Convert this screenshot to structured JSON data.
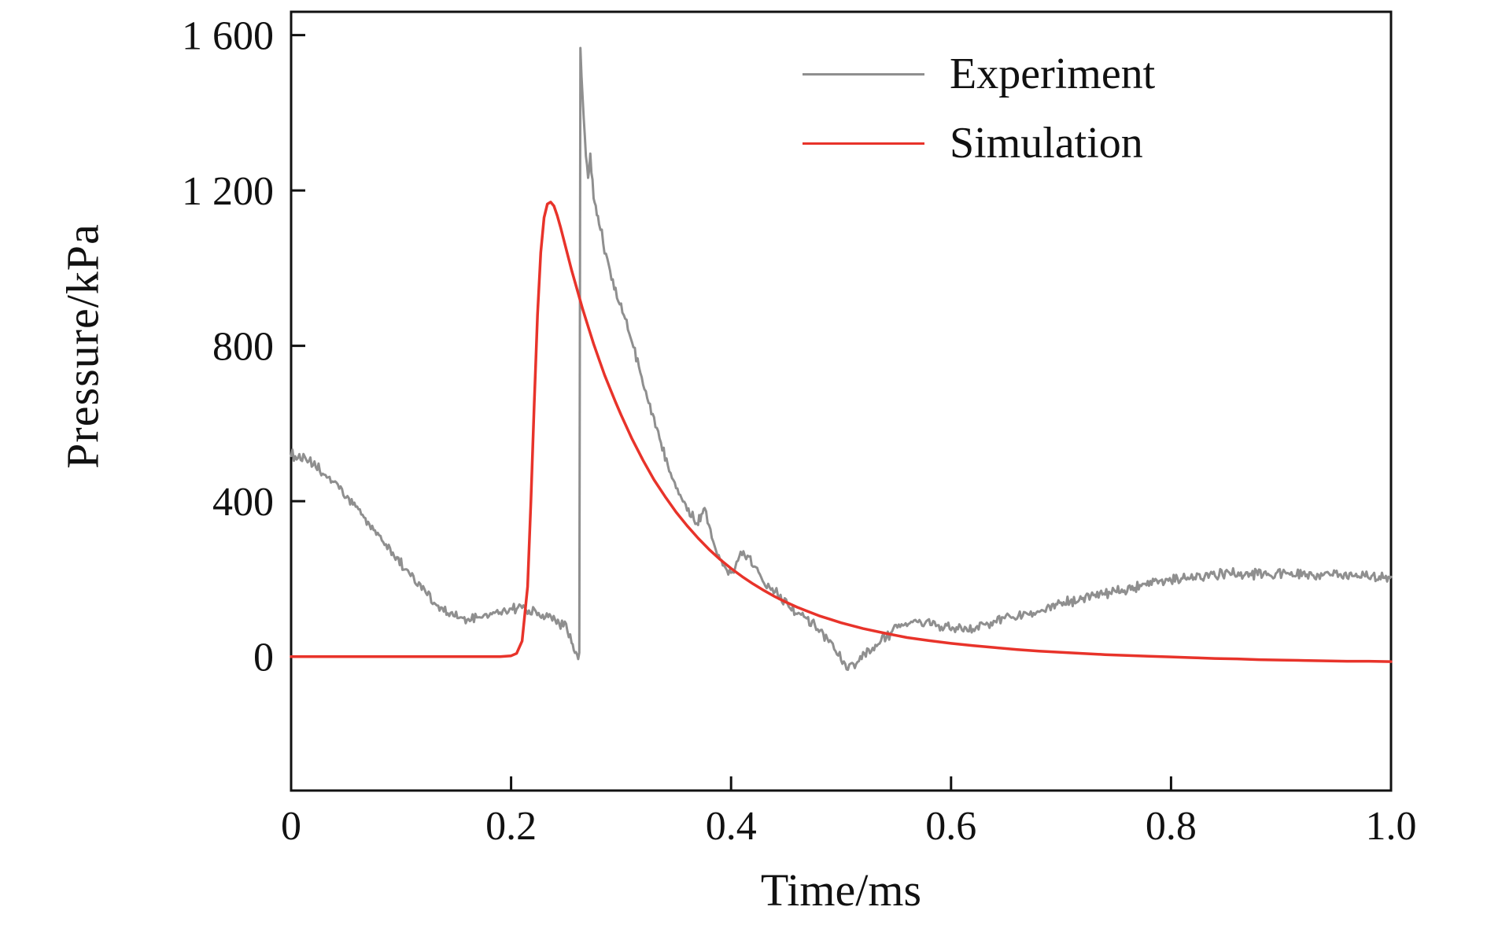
{
  "chart_data": {
    "type": "line",
    "title": "",
    "xlabel": "Time/ms",
    "ylabel": "Pressure/kPa",
    "xlim": [
      0,
      1.0
    ],
    "ylim": [
      -345,
      1660
    ],
    "x_ticks": [
      0,
      0.2,
      0.4,
      0.6,
      0.8,
      1.0
    ],
    "x_tick_labels": [
      "0",
      "0.2",
      "0.4",
      "0.6",
      "0.8",
      "1.0"
    ],
    "y_ticks": [
      0,
      400,
      800,
      1200,
      1600
    ],
    "y_tick_labels": [
      "0",
      "400",
      "800",
      "1 200",
      "1 600"
    ],
    "grid": false,
    "legend_position": "top-right-inside",
    "axis_color": "#111111",
    "series": [
      {
        "name": "Experiment",
        "color": "#8f8f8f",
        "line_width": 3,
        "noise_amplitude": 16,
        "points": [
          [
            0.0,
            520
          ],
          [
            0.01,
            510
          ],
          [
            0.02,
            495
          ],
          [
            0.03,
            470
          ],
          [
            0.04,
            445
          ],
          [
            0.05,
            412
          ],
          [
            0.06,
            380
          ],
          [
            0.07,
            345
          ],
          [
            0.08,
            310
          ],
          [
            0.09,
            275
          ],
          [
            0.1,
            240
          ],
          [
            0.11,
            205
          ],
          [
            0.12,
            175
          ],
          [
            0.13,
            140
          ],
          [
            0.14,
            115
          ],
          [
            0.15,
            100
          ],
          [
            0.16,
            95
          ],
          [
            0.17,
            100
          ],
          [
            0.18,
            108
          ],
          [
            0.19,
            115
          ],
          [
            0.2,
            122
          ],
          [
            0.21,
            126
          ],
          [
            0.22,
            118
          ],
          [
            0.23,
            105
          ],
          [
            0.24,
            95
          ],
          [
            0.25,
            75
          ],
          [
            0.255,
            40
          ],
          [
            0.258,
            10
          ],
          [
            0.26,
            -5
          ],
          [
            0.262,
            0
          ],
          [
            0.263,
            1565
          ],
          [
            0.266,
            1380
          ],
          [
            0.268,
            1290
          ],
          [
            0.27,
            1230
          ],
          [
            0.272,
            1290
          ],
          [
            0.275,
            1190
          ],
          [
            0.278,
            1150
          ],
          [
            0.28,
            1120
          ],
          [
            0.285,
            1050
          ],
          [
            0.29,
            990
          ],
          [
            0.295,
            940
          ],
          [
            0.3,
            900
          ],
          [
            0.305,
            860
          ],
          [
            0.31,
            810
          ],
          [
            0.315,
            760
          ],
          [
            0.32,
            700
          ],
          [
            0.325,
            650
          ],
          [
            0.33,
            610
          ],
          [
            0.335,
            565
          ],
          [
            0.34,
            520
          ],
          [
            0.345,
            480
          ],
          [
            0.35,
            440
          ],
          [
            0.355,
            410
          ],
          [
            0.36,
            385
          ],
          [
            0.365,
            360
          ],
          [
            0.37,
            340
          ],
          [
            0.373,
            370
          ],
          [
            0.376,
            390
          ],
          [
            0.38,
            330
          ],
          [
            0.385,
            290
          ],
          [
            0.39,
            255
          ],
          [
            0.395,
            230
          ],
          [
            0.4,
            215
          ],
          [
            0.405,
            240
          ],
          [
            0.41,
            265
          ],
          [
            0.415,
            255
          ],
          [
            0.42,
            240
          ],
          [
            0.425,
            215
          ],
          [
            0.43,
            195
          ],
          [
            0.435,
            185
          ],
          [
            0.44,
            170
          ],
          [
            0.445,
            155
          ],
          [
            0.45,
            140
          ],
          [
            0.455,
            125
          ],
          [
            0.46,
            115
          ],
          [
            0.465,
            105
          ],
          [
            0.47,
            95
          ],
          [
            0.475,
            85
          ],
          [
            0.48,
            70
          ],
          [
            0.485,
            55
          ],
          [
            0.49,
            35
          ],
          [
            0.495,
            15
          ],
          [
            0.5,
            -5
          ],
          [
            0.505,
            -25
          ],
          [
            0.51,
            -30
          ],
          [
            0.515,
            -20
          ],
          [
            0.52,
            0
          ],
          [
            0.53,
            25
          ],
          [
            0.54,
            50
          ],
          [
            0.55,
            70
          ],
          [
            0.56,
            85
          ],
          [
            0.57,
            90
          ],
          [
            0.58,
            85
          ],
          [
            0.59,
            80
          ],
          [
            0.6,
            72
          ],
          [
            0.61,
            70
          ],
          [
            0.62,
            75
          ],
          [
            0.63,
            80
          ],
          [
            0.64,
            90
          ],
          [
            0.65,
            100
          ],
          [
            0.66,
            105
          ],
          [
            0.67,
            112
          ],
          [
            0.68,
            120
          ],
          [
            0.7,
            135
          ],
          [
            0.72,
            150
          ],
          [
            0.74,
            162
          ],
          [
            0.76,
            172
          ],
          [
            0.78,
            185
          ],
          [
            0.8,
            196
          ],
          [
            0.82,
            205
          ],
          [
            0.84,
            212
          ],
          [
            0.86,
            215
          ],
          [
            0.88,
            212
          ],
          [
            0.9,
            215
          ],
          [
            0.92,
            212
          ],
          [
            0.94,
            208
          ],
          [
            0.96,
            208
          ],
          [
            0.98,
            206
          ],
          [
            1.0,
            205
          ]
        ]
      },
      {
        "name": "Simulation",
        "color": "#e8332a",
        "line_width": 3.5,
        "noise_amplitude": 0,
        "points": [
          [
            0.0,
            0
          ],
          [
            0.05,
            0
          ],
          [
            0.1,
            0
          ],
          [
            0.15,
            0
          ],
          [
            0.19,
            0
          ],
          [
            0.2,
            2
          ],
          [
            0.205,
            8
          ],
          [
            0.21,
            40
          ],
          [
            0.215,
            180
          ],
          [
            0.218,
            400
          ],
          [
            0.221,
            650
          ],
          [
            0.224,
            880
          ],
          [
            0.227,
            1040
          ],
          [
            0.23,
            1130
          ],
          [
            0.233,
            1165
          ],
          [
            0.236,
            1170
          ],
          [
            0.239,
            1160
          ],
          [
            0.242,
            1135
          ],
          [
            0.245,
            1105
          ],
          [
            0.25,
            1050
          ],
          [
            0.255,
            995
          ],
          [
            0.26,
            945
          ],
          [
            0.265,
            895
          ],
          [
            0.27,
            850
          ],
          [
            0.275,
            805
          ],
          [
            0.28,
            765
          ],
          [
            0.285,
            725
          ],
          [
            0.29,
            690
          ],
          [
            0.295,
            655
          ],
          [
            0.3,
            622
          ],
          [
            0.31,
            560
          ],
          [
            0.32,
            505
          ],
          [
            0.33,
            455
          ],
          [
            0.34,
            412
          ],
          [
            0.35,
            372
          ],
          [
            0.36,
            337
          ],
          [
            0.37,
            305
          ],
          [
            0.38,
            276
          ],
          [
            0.39,
            250
          ],
          [
            0.4,
            227
          ],
          [
            0.41,
            206
          ],
          [
            0.42,
            187
          ],
          [
            0.43,
            170
          ],
          [
            0.44,
            154
          ],
          [
            0.45,
            140
          ],
          [
            0.46,
            127
          ],
          [
            0.47,
            116
          ],
          [
            0.48,
            105
          ],
          [
            0.49,
            96
          ],
          [
            0.5,
            87
          ],
          [
            0.52,
            72
          ],
          [
            0.54,
            60
          ],
          [
            0.56,
            49
          ],
          [
            0.58,
            41
          ],
          [
            0.6,
            34
          ],
          [
            0.62,
            28
          ],
          [
            0.64,
            23
          ],
          [
            0.66,
            18
          ],
          [
            0.68,
            14
          ],
          [
            0.7,
            11
          ],
          [
            0.72,
            8
          ],
          [
            0.74,
            5
          ],
          [
            0.76,
            3
          ],
          [
            0.78,
            1
          ],
          [
            0.8,
            -1
          ],
          [
            0.82,
            -3
          ],
          [
            0.84,
            -5
          ],
          [
            0.86,
            -6
          ],
          [
            0.88,
            -8
          ],
          [
            0.9,
            -9
          ],
          [
            0.92,
            -10
          ],
          [
            0.94,
            -11
          ],
          [
            0.96,
            -12
          ],
          [
            0.98,
            -12
          ],
          [
            1.0,
            -13
          ]
        ]
      }
    ]
  }
}
